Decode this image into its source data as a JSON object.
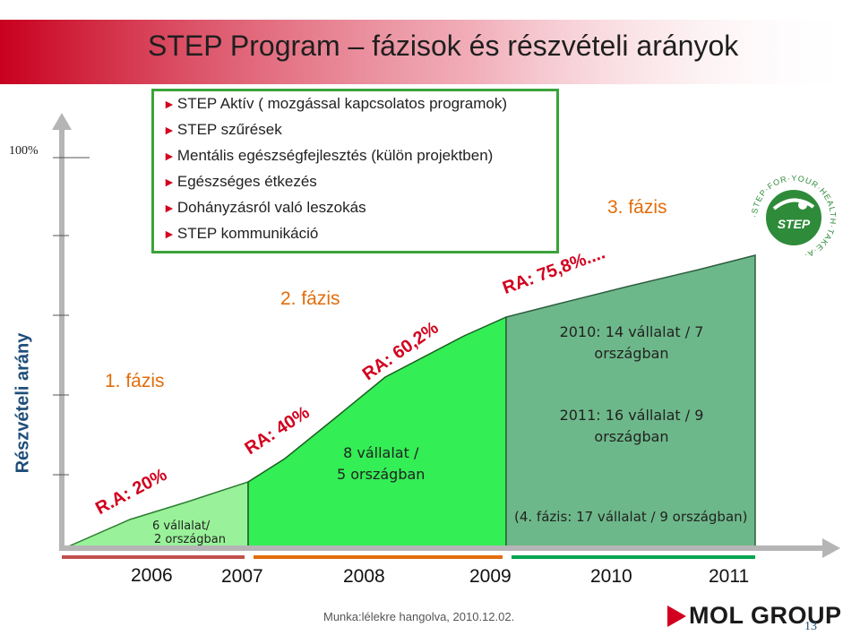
{
  "title": "STEP  Program – fázisok és részvételi arányok",
  "programs": [
    "STEP Aktív ( mozgással kapcsolatos programok)",
    "STEP szűrések",
    "Mentális egészségfejlesztés (külön projektben)",
    "Egészséges étkezés",
    "Dohányzásról való leszokás",
    "STEP kommunikáció"
  ],
  "axis": {
    "top_label": "100%",
    "y_label": "Részvételi arány"
  },
  "phases": {
    "p1": "1. fázis",
    "p2": "2. fázis",
    "p3": "3. fázis"
  },
  "ra": {
    "r1": "R.A: 20%",
    "r2": "RA: 40%",
    "r3": "RA: 60,2%",
    "r4": "RA: 75,8%...."
  },
  "notes": {
    "n1a": "6 vállalat/",
    "n1b": "2 országban",
    "n2a": "8 vállalat /",
    "n2b": "5 országban",
    "n3a": "2010: 14 vállalat / 7",
    "n3b": "országban",
    "n4a": "2011: 16 vállalat / 9",
    "n4b": "országban",
    "n5": "(4. fázis: 17 vállalat / 9 országban)"
  },
  "years": [
    "2006",
    "2007",
    "2008",
    "2009",
    "2010",
    "2011"
  ],
  "footer_note": "Munka:lélekre hangolva, 2010.12.02.",
  "brand": "MOL GROUP",
  "page_number": "13",
  "logo_text": "STEP",
  "logo_ring": "·STEP·FOR·YOUR·HEALTH·TAKE·A·",
  "colors": {
    "banner": "#c8001e",
    "phase1": "#99f299",
    "phase2": "#33ee55",
    "phase3": "#6db88a",
    "accent_orange": "#e36c09",
    "ra_red": "#d2001e"
  }
}
